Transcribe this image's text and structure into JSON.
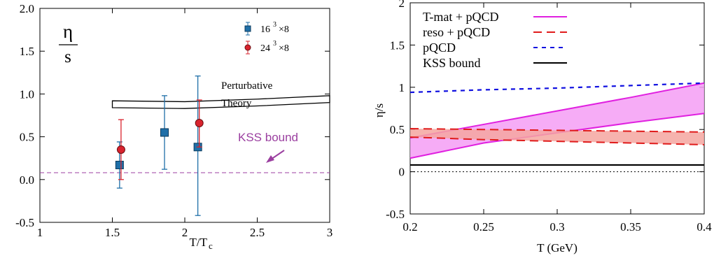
{
  "chart_data": [
    {
      "type": "scatter",
      "title": "",
      "xlabel": "T/T",
      "xlabel_sub": "c",
      "ylabel_num": "η",
      "ylabel_den": "s",
      "xlim": [
        1,
        3
      ],
      "ylim": [
        -0.5,
        2.0
      ],
      "xticks": [
        "1",
        "1.5",
        "2",
        "2.5",
        "3"
      ],
      "yticks": [
        "2.0",
        "1.5",
        "1.0",
        "0.5",
        "0.0",
        "-0.5"
      ],
      "grid": false,
      "legend_position": "top-right",
      "series": [
        {
          "name_base": "16",
          "name_exp": "3",
          "name_tail": "×8",
          "marker": "square",
          "color": "#1f6fa8",
          "points": [
            {
              "x": 1.55,
              "y": 0.17,
              "ylow": -0.1,
              "yhigh": 0.44
            },
            {
              "x": 1.86,
              "y": 0.55,
              "ylow": 0.12,
              "yhigh": 0.98
            },
            {
              "x": 2.09,
              "y": 0.38,
              "ylow": -0.42,
              "yhigh": 1.21
            }
          ]
        },
        {
          "name_base": "24",
          "name_exp": "3",
          "name_tail": "×8",
          "marker": "circle",
          "color": "#d9232e",
          "points": [
            {
              "x": 1.56,
              "y": 0.35,
              "ylow": 0.0,
              "yhigh": 0.7
            },
            {
              "x": 2.1,
              "y": 0.66,
              "ylow": 0.38,
              "yhigh": 0.93
            }
          ]
        }
      ],
      "band": {
        "label_line1": "Perturbative",
        "label_line2": "Theory",
        "x": [
          1.5,
          2.0,
          2.5,
          3.0
        ],
        "upper": [
          0.92,
          0.91,
          0.94,
          0.98
        ],
        "lower": [
          0.84,
          0.83,
          0.86,
          0.9
        ]
      },
      "kss_line": {
        "label": "KSS bound",
        "y": 0.08,
        "color": "#9b3fa0"
      }
    },
    {
      "type": "line",
      "title": "",
      "xlabel": "T (GeV)",
      "ylabel": "η/s",
      "xlim": [
        0.2,
        0.4
      ],
      "ylim": [
        -0.5,
        2
      ],
      "xticks": [
        "0.2",
        "0.25",
        "0.3",
        "0.35",
        "0.4"
      ],
      "yticks": [
        "2",
        "1.5",
        "1",
        "0.5",
        "0",
        "-0.5"
      ],
      "grid": false,
      "legend_position": "top-left",
      "series": [
        {
          "name": "T-mat + pQCD",
          "color": "#e020e0",
          "style": "solid",
          "x": [
            0.2,
            0.25,
            0.3,
            0.35,
            0.4
          ],
          "upper": [
            0.4,
            0.56,
            0.72,
            0.88,
            1.05
          ],
          "lower": [
            0.16,
            0.34,
            0.46,
            0.58,
            0.69
          ],
          "fill": "#f59ef5"
        },
        {
          "name": "reso + pQCD",
          "color": "#e01b1b",
          "style": "dashed",
          "x": [
            0.2,
            0.25,
            0.3,
            0.35,
            0.4
          ],
          "upper": [
            0.51,
            0.5,
            0.49,
            0.48,
            0.47
          ],
          "lower": [
            0.41,
            0.38,
            0.36,
            0.34,
            0.32
          ],
          "fill": "#f4a6a0"
        },
        {
          "name": "pQCD",
          "color": "#1010e0",
          "style": "dotted",
          "x": [
            0.2,
            0.25,
            0.3,
            0.35,
            0.4
          ],
          "y": [
            0.94,
            0.97,
            0.99,
            1.02,
            1.05
          ]
        },
        {
          "name": "KSS bound",
          "color": "#000000",
          "style": "solid",
          "x": [
            0.2,
            0.4
          ],
          "y": [
            0.08,
            0.08
          ]
        }
      ],
      "zero_line": {
        "y": 0.0
      }
    }
  ]
}
